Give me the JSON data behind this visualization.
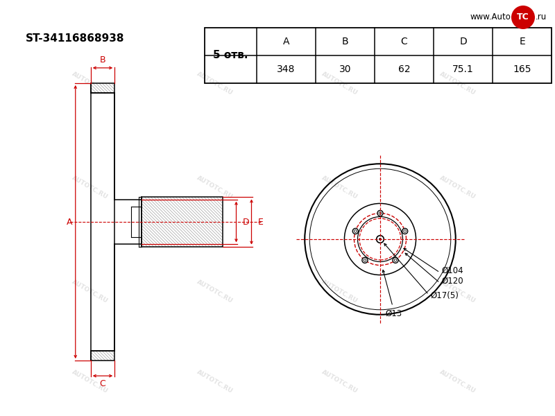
{
  "part_number": "ST-34116868938",
  "holes": 5,
  "holes_label": "5 отв.",
  "dim_A": 348,
  "dim_B": 30,
  "dim_C": 62,
  "dim_D": 75.1,
  "dim_E": 165,
  "label_phi17": "Ø17(5)",
  "label_phi120": "Ø120",
  "label_phi104": "Ø104",
  "label_phi13": "Ø13",
  "bg_color": "#ffffff",
  "line_color": "#000000",
  "red_color": "#cc0000",
  "watermark": "AUTOTC.RU"
}
